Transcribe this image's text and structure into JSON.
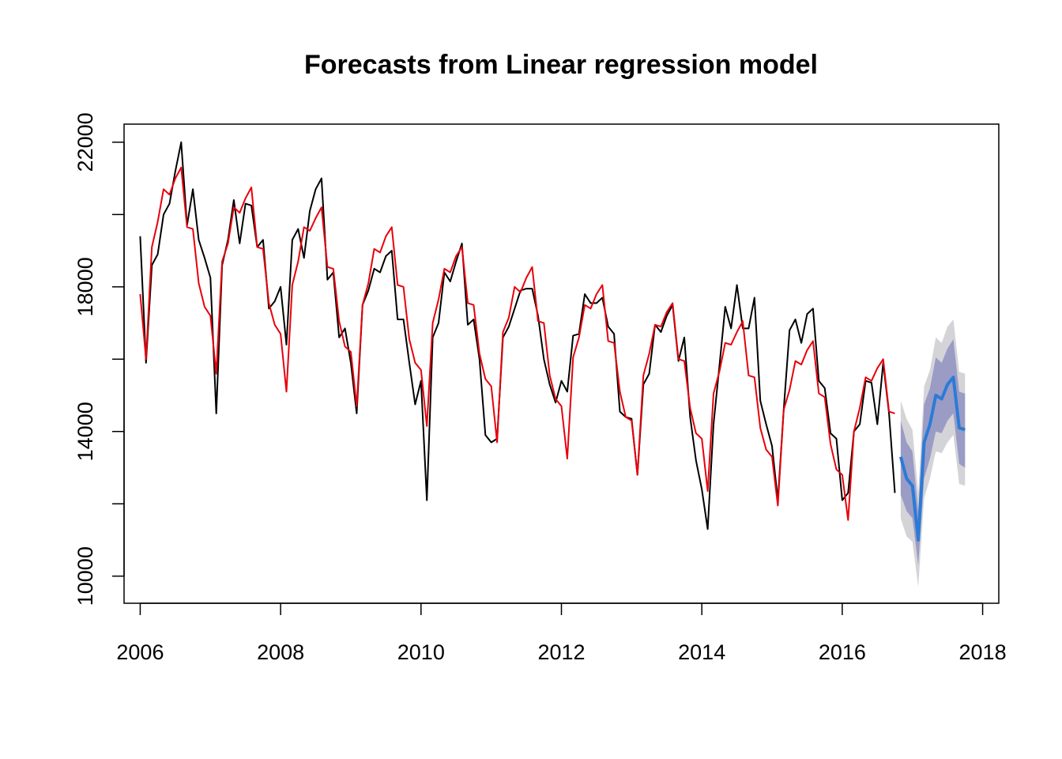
{
  "chart_data": {
    "type": "line",
    "title": "Forecasts from Linear regression model",
    "xlabel": "",
    "ylabel": "",
    "xlim": [
      2005.77,
      2018.23
    ],
    "ylim": [
      9250,
      22500
    ],
    "x_ticks": [
      "2006",
      "2008",
      "2010",
      "2012",
      "2014",
      "2016",
      "2018"
    ],
    "y_ticks": [
      "10000",
      "14000",
      "18000",
      "22000"
    ],
    "grid": false,
    "legend": "none",
    "start": 2006.0,
    "frequency": 12,
    "series": [
      {
        "color": "#000000",
        "values": [
          19400,
          15900,
          18600,
          18900,
          20000,
          20300,
          21200,
          22000,
          19700,
          20700,
          19300,
          18800,
          18250,
          14500,
          18600,
          19300,
          20400,
          19200,
          20300,
          20250,
          19100,
          19300,
          17400,
          17600,
          18000,
          16400,
          19300,
          19600,
          18800,
          20100,
          20700,
          21000,
          18200,
          18400,
          16600,
          16850,
          15900,
          14500,
          17500,
          17900,
          18500,
          18400,
          18850,
          19000,
          17100,
          17100,
          15900,
          14750,
          15400,
          12100,
          16600,
          17000,
          18400,
          18150,
          18700,
          19200,
          16950,
          17100,
          16000,
          13900,
          13700,
          13800,
          16600,
          16900,
          17400,
          17900,
          17950,
          17950,
          17200,
          16000,
          15300,
          14800,
          15400,
          15100,
          16650,
          16700,
          17800,
          17550,
          17550,
          17700,
          16900,
          16700,
          14550,
          14400,
          14350,
          12800,
          15300,
          15600,
          16950,
          16750,
          17200,
          17500,
          15950,
          16600,
          14400,
          13200,
          12400,
          11300,
          14200,
          15800,
          17450,
          16850,
          18050,
          16850,
          16850,
          17700,
          14850,
          14200,
          13600,
          12100,
          14600,
          16800,
          17100,
          16450,
          17250,
          17400,
          15400,
          15200,
          13950,
          13800,
          12100,
          12300,
          14000,
          14200,
          15400,
          15350,
          14200,
          15900,
          14500,
          12300
        ]
      },
      {
        "color": "#e8000b",
        "values": [
          17800,
          16000,
          19100,
          19800,
          20700,
          20550,
          21000,
          21300,
          19650,
          19600,
          18100,
          17450,
          17200,
          15600,
          18700,
          19200,
          20200,
          20050,
          20450,
          20750,
          19100,
          19050,
          17550,
          16950,
          16700,
          15100,
          18050,
          18700,
          19650,
          19550,
          19900,
          20200,
          18550,
          18500,
          17050,
          16350,
          16200,
          14700,
          17500,
          18100,
          19050,
          18950,
          19400,
          19650,
          18050,
          18000,
          16550,
          15900,
          15700,
          14150,
          17000,
          17650,
          18500,
          18400,
          18850,
          19100,
          17550,
          17500,
          16150,
          15450,
          15250,
          13700,
          16750,
          17150,
          18000,
          17850,
          18250,
          18550,
          17050,
          17000,
          15550,
          14900,
          14700,
          13250,
          16050,
          16600,
          17500,
          17400,
          17800,
          18050,
          16500,
          16450,
          15100,
          14400,
          14300,
          12800,
          15550,
          16150,
          16950,
          16900,
          17300,
          17550,
          16000,
          15950,
          14650,
          13950,
          13800,
          12350,
          15050,
          15650,
          16450,
          16400,
          16750,
          17050,
          15550,
          15500,
          14100,
          13500,
          13300,
          11950,
          14600,
          15150,
          15950,
          15850,
          16250,
          16500,
          15050,
          14950,
          13650,
          12950,
          12800,
          11550,
          14000,
          14650,
          15500,
          15400,
          15750,
          16000,
          14550,
          14500
        ]
      }
    ],
    "forecast": {
      "start": 2016.833,
      "color": "#2b7bd6",
      "band_80_color": "#9a9cc5",
      "band_95_color": "#d4d4d8",
      "values": [
        13300,
        12700,
        12500,
        11000,
        13700,
        14200,
        15000,
        14900,
        15300,
        15500,
        14100,
        14050
      ],
      "lower_80": [
        12250,
        11800,
        11600,
        10300,
        12700,
        13250,
        14000,
        13950,
        14300,
        14500,
        13100,
        13000
      ],
      "upper_80": [
        14300,
        13700,
        13450,
        11800,
        14750,
        15200,
        16050,
        15900,
        16300,
        16550,
        15100,
        15050
      ],
      "lower_95": [
        11600,
        11100,
        10950,
        9700,
        12150,
        12700,
        13450,
        13400,
        13700,
        13900,
        12550,
        12500
      ],
      "upper_95": [
        14850,
        14350,
        14050,
        12300,
        15250,
        15700,
        16600,
        16450,
        16900,
        17100,
        15650,
        15600
      ]
    }
  }
}
